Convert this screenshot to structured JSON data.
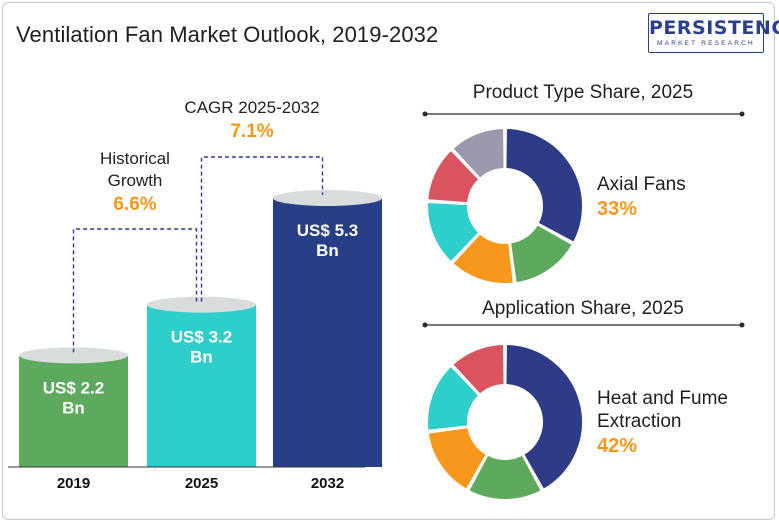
{
  "title": "Ventilation Fan Market Outlook, 2019-2032",
  "logo": {
    "main": "PERSISTENCE",
    "sub": "MARKET RESEARCH"
  },
  "chart_data": [
    {
      "type": "bar",
      "categories": [
        "2019",
        "2025",
        "2032"
      ],
      "values": [
        2.2,
        3.2,
        5.3
      ],
      "labels": [
        "US$ 2.2 Bn",
        "US$ 3.2 Bn",
        "US$ 5.3 Bn"
      ],
      "colors": [
        "#5daa5e",
        "#2ecfcb",
        "#263f87"
      ],
      "annotations": [
        {
          "label_lines": [
            "Historical",
            "Growth"
          ],
          "value": "6.6%"
        },
        {
          "label_lines": [
            "CAGR 2025-2032"
          ],
          "value": "7.1%"
        }
      ]
    },
    {
      "type": "pie",
      "title": "Product Type Share, 2025",
      "segments": [
        {
          "value": 33,
          "color": "#2f3b86"
        },
        {
          "value": 15,
          "color": "#5daa5e"
        },
        {
          "value": 14,
          "color": "#f7981c"
        },
        {
          "value": 14,
          "color": "#2ecfcb"
        },
        {
          "value": 12,
          "color": "#d9545f"
        },
        {
          "value": 12,
          "color": "#9c99ae"
        }
      ],
      "highlight_label_lines": [
        "Axial Fans"
      ],
      "highlight_value": "33%"
    },
    {
      "type": "pie",
      "title": "Application Share, 2025",
      "segments": [
        {
          "value": 42,
          "color": "#2f3b86"
        },
        {
          "value": 16,
          "color": "#5daa5e"
        },
        {
          "value": 15,
          "color": "#f7981c"
        },
        {
          "value": 15,
          "color": "#2ecfcb"
        },
        {
          "value": 12,
          "color": "#d9545f"
        }
      ],
      "highlight_label_lines": [
        "Heat and Fume",
        "Extraction"
      ],
      "highlight_value": "42%"
    }
  ],
  "accent_color": "#f7981c"
}
